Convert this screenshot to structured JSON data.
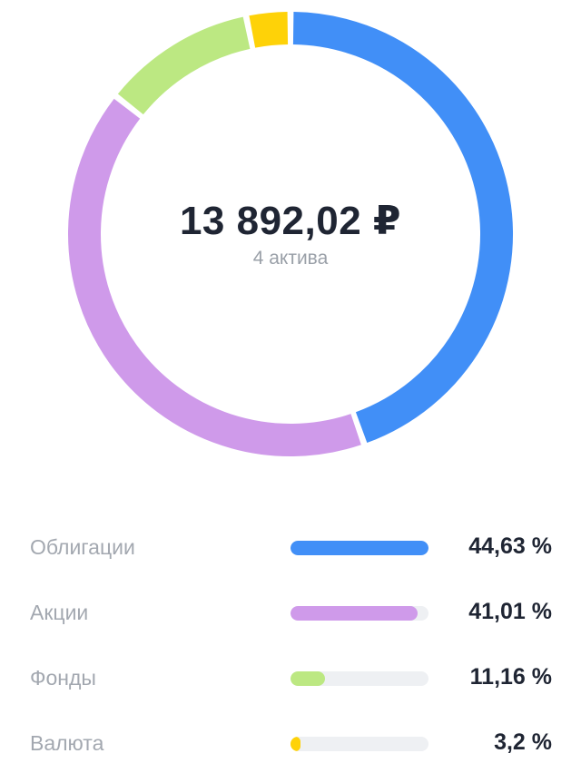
{
  "summary": {
    "total": "13 892,02 ₽",
    "count": "4 актива"
  },
  "chart_data": {
    "type": "pie",
    "variant": "donut",
    "categories": [
      "Облигации",
      "Акции",
      "Фонды",
      "Валюта"
    ],
    "values": [
      44.63,
      41.01,
      11.16,
      3.2
    ],
    "value_labels": [
      "44,63 %",
      "41,01 %",
      "11,16 %",
      "3,2 %"
    ],
    "colors": [
      "#418ff7",
      "#cf9aea",
      "#bce882",
      "#fed208"
    ],
    "legend": "bottom"
  },
  "legend_rows": [
    {
      "label": "Облигации",
      "value": "44,63 %",
      "percent": 44.63,
      "color": "#418ff7"
    },
    {
      "label": "Акции",
      "value": "41,01 %",
      "percent": 41.01,
      "color": "#cf9aea"
    },
    {
      "label": "Фонды",
      "value": "11,16 %",
      "percent": 11.16,
      "color": "#bce882"
    },
    {
      "label": "Валюта",
      "value": "3,2 %",
      "percent": 3.2,
      "color": "#fed208"
    }
  ]
}
